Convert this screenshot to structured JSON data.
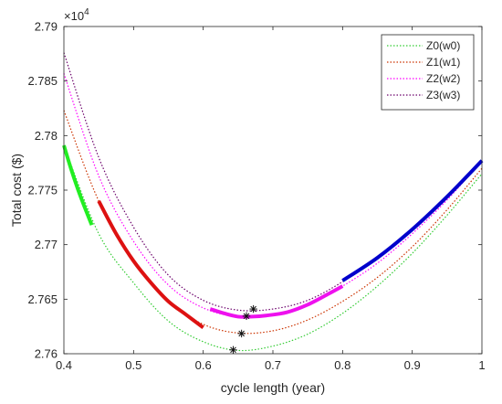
{
  "chart_data": {
    "type": "line",
    "xlabel": "cycle length (year)",
    "ylabel": "Total cost ($)",
    "y_exponent_label": "×10",
    "y_exponent_power": "4",
    "xlim": [
      0.4,
      1.0
    ],
    "ylim": [
      2.76,
      2.79
    ],
    "xticks": [
      0.4,
      0.5,
      0.6,
      0.7,
      0.8,
      0.9,
      1.0
    ],
    "xtick_labels": [
      "0.4",
      "0.5",
      "0.6",
      "0.7",
      "0.8",
      "0.9",
      "1"
    ],
    "yticks": [
      2.76,
      2.765,
      2.77,
      2.775,
      2.78,
      2.785,
      2.79
    ],
    "ytick_labels": [
      "2.76",
      "2.765",
      "2.77",
      "2.775",
      "2.78",
      "2.785",
      "2.79"
    ],
    "legend_position": "top-right",
    "series": [
      {
        "name": "Z0(w0)",
        "color": "#33cc33",
        "x": [
          0.4,
          0.45,
          0.5,
          0.55,
          0.6,
          0.65,
          0.7,
          0.75,
          0.8,
          0.85,
          0.9,
          0.95,
          1.0
        ],
        "y": [
          2.7791,
          2.771,
          2.7665,
          2.763,
          2.7611,
          2.7603,
          2.7607,
          2.7618,
          2.7637,
          2.7662,
          2.7692,
          2.7727,
          2.7765
        ]
      },
      {
        "name": "Z1(w1)",
        "color": "#cc3300",
        "x": [
          0.4,
          0.45,
          0.5,
          0.55,
          0.6,
          0.65,
          0.7,
          0.75,
          0.8,
          0.85,
          0.9,
          0.95,
          1.0
        ],
        "y": [
          2.7823,
          2.774,
          2.7685,
          2.7648,
          2.7627,
          2.7619,
          2.7621,
          2.7631,
          2.7648,
          2.767,
          2.7698,
          2.7732,
          2.777
        ]
      },
      {
        "name": "Z2(w2)",
        "color": "#ff00ff",
        "x": [
          0.4,
          0.45,
          0.5,
          0.55,
          0.6,
          0.65,
          0.7,
          0.75,
          0.8,
          0.85,
          0.9,
          0.95,
          1.0
        ],
        "y": [
          2.7857,
          2.7763,
          2.7703,
          2.7663,
          2.7642,
          2.7634,
          2.7636,
          2.7645,
          2.7662,
          2.7683,
          2.771,
          2.7741,
          2.7777
        ]
      },
      {
        "name": "Z3(w3)",
        "color": "#6b006b",
        "x": [
          0.4,
          0.45,
          0.5,
          0.55,
          0.6,
          0.65,
          0.7,
          0.75,
          0.8,
          0.85,
          0.9,
          0.95,
          1.0
        ],
        "y": [
          2.7876,
          2.778,
          2.7716,
          2.7672,
          2.7649,
          2.764,
          2.7641,
          2.7649,
          2.7666,
          2.7688,
          2.7714,
          2.7744,
          2.7777
        ]
      }
    ],
    "highlighted_segments": [
      {
        "color": "#22ee22",
        "x": [
          0.4,
          0.41,
          0.42,
          0.43,
          0.44
        ],
        "y": [
          2.7791,
          2.777,
          2.7751,
          2.7734,
          2.7718
        ]
      },
      {
        "color": "#dd1111",
        "x": [
          0.45,
          0.475,
          0.5,
          0.525,
          0.55,
          0.575,
          0.6
        ],
        "y": [
          2.774,
          2.771,
          2.7685,
          2.7665,
          2.7648,
          2.7636,
          2.7624
        ]
      },
      {
        "color": "#ee11ee",
        "x": [
          0.61,
          0.63,
          0.65,
          0.67,
          0.69,
          0.72,
          0.75,
          0.78,
          0.8
        ],
        "y": [
          2.7641,
          2.7637,
          2.7634,
          2.7634,
          2.7635,
          2.7638,
          2.7645,
          2.7655,
          2.7662
        ]
      },
      {
        "color": "#0000cc",
        "x": [
          0.8,
          0.85,
          0.9,
          0.95,
          1.0
        ],
        "y": [
          2.7667,
          2.7688,
          2.7714,
          2.7744,
          2.7777
        ]
      }
    ],
    "optimum_markers": [
      {
        "x": 0.643,
        "y": 2.76035
      },
      {
        "x": 0.655,
        "y": 2.76185
      },
      {
        "x": 0.662,
        "y": 2.76345
      },
      {
        "x": 0.672,
        "y": 2.7641
      }
    ]
  }
}
